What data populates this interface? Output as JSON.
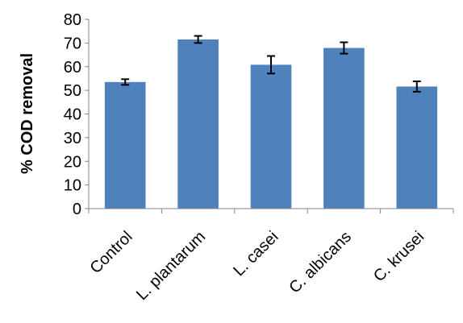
{
  "chart_data": {
    "type": "bar",
    "title": "",
    "xlabel": "",
    "ylabel": "% COD removal",
    "categories": [
      "Control",
      "L. plantarum",
      "L. casei",
      "C. albicans",
      "C. krusei"
    ],
    "values": [
      53.5,
      71.5,
      60.8,
      67.9,
      51.6
    ],
    "error": [
      1.2,
      1.5,
      3.7,
      2.4,
      2.2
    ],
    "ylim": [
      0,
      80
    ],
    "yticks": [
      0,
      10,
      20,
      30,
      40,
      50,
      60,
      70,
      80
    ],
    "ytick_labels": [
      "0",
      "10",
      "20",
      "30",
      "40",
      "50",
      "60",
      "70",
      "80"
    ],
    "grid": false,
    "legend": "none",
    "bar_color": "#4f81bd",
    "axis_color": "#868686",
    "error_bar_color": "#000000"
  }
}
